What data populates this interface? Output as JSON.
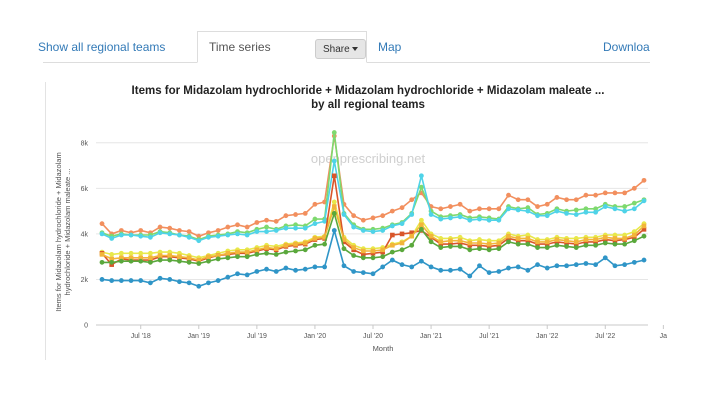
{
  "tabs": {
    "show_all": "Show all regional teams",
    "time_series": "Time series",
    "share": "Share",
    "map": "Map",
    "download": "Downloa"
  },
  "chart_data": {
    "type": "line",
    "title_line1": "Items for Midazolam hydrochloride + Midazolam hydrochloride + Midazolam maleate ...",
    "title_line2": "by all regional teams",
    "xlabel": "Month",
    "ylabel_line1": "Items for Midazolam hydrochloride + Midazolam",
    "ylabel_line2": "hydrochloride + Midazolam maleate ...",
    "watermark": "openprescribing.net",
    "ylim": [
      0,
      9000
    ],
    "yticks": [
      0,
      2000,
      4000,
      6000,
      8000
    ],
    "ytick_labels": [
      "0",
      "2k",
      "4k",
      "6k",
      "8k"
    ],
    "xticks": [
      "Jul '18",
      "Jan '19",
      "Jul '19",
      "Jan '20",
      "Jul '20",
      "Jan '21",
      "Jul '21",
      "Jan '22",
      "Jul '22",
      "Ja"
    ],
    "start_month": "2018-03",
    "grid": "horizontal",
    "colors": [
      "#f28f5e",
      "#7ed96e",
      "#4fd3e8",
      "#e8e84a",
      "#d9562a",
      "#f2b53a",
      "#5aa83c",
      "#2f95c7"
    ],
    "series": [
      {
        "values": [
          4450,
          4000,
          4150,
          4050,
          4150,
          4050,
          4300,
          4250,
          4150,
          4100,
          3900,
          4050,
          4150,
          4300,
          4400,
          4300,
          4500,
          4600,
          4550,
          4800,
          4850,
          4900,
          5300,
          5400,
          8300,
          5300,
          4800,
          4600,
          4700,
          4800,
          5000,
          5150,
          5500,
          5800,
          5200,
          5100,
          5200,
          5300,
          5000,
          5100,
          5100,
          5100,
          5700,
          5500,
          5500,
          5200,
          5300,
          5600,
          5500,
          5500,
          5700,
          5700,
          5800,
          5800,
          5800,
          6000,
          6350
        ]
      },
      {
        "values": [
          4050,
          3900,
          4000,
          3950,
          3950,
          3950,
          4100,
          4050,
          3950,
          3900,
          3750,
          3900,
          3950,
          4000,
          4100,
          4050,
          4200,
          4300,
          4200,
          4350,
          4400,
          4350,
          4650,
          4650,
          8450,
          4900,
          4400,
          4200,
          4200,
          4250,
          4400,
          4500,
          4900,
          6050,
          5000,
          4750,
          4800,
          4850,
          4700,
          4750,
          4700,
          4650,
          5200,
          5100,
          5150,
          4850,
          4900,
          5100,
          5000,
          5050,
          5100,
          5100,
          5300,
          5200,
          5200,
          5350,
          5500
        ]
      },
      {
        "values": [
          4000,
          3800,
          3950,
          3950,
          3900,
          3850,
          4050,
          4000,
          3950,
          3850,
          3700,
          3850,
          3900,
          3950,
          4000,
          3950,
          4100,
          4100,
          4150,
          4250,
          4250,
          4250,
          4450,
          4550,
          7200,
          4850,
          4300,
          4150,
          4100,
          4150,
          4350,
          4450,
          4850,
          6550,
          4850,
          4650,
          4700,
          4750,
          4600,
          4650,
          4600,
          4600,
          5100,
          5050,
          5000,
          4800,
          4800,
          5000,
          4900,
          4850,
          4950,
          4950,
          5200,
          5100,
          5000,
          5100,
          5450
        ]
      },
      {
        "values": [
          3200,
          3100,
          3150,
          3150,
          3150,
          3150,
          3200,
          3200,
          3150,
          3050,
          2950,
          3050,
          3150,
          3250,
          3300,
          3300,
          3400,
          3500,
          3450,
          3550,
          3600,
          3650,
          3850,
          3900,
          5400,
          3850,
          3500,
          3350,
          3350,
          3400,
          3550,
          3650,
          3900,
          4600,
          4000,
          3800,
          3800,
          3850,
          3700,
          3750,
          3700,
          3700,
          4000,
          3900,
          3950,
          3750,
          3750,
          3850,
          3800,
          3800,
          3850,
          3850,
          3950,
          3950,
          3950,
          4100,
          4450
        ]
      },
      {
        "values": [
          3150,
          2650,
          2900,
          2850,
          2850,
          2850,
          3000,
          3000,
          2950,
          2900,
          2800,
          2950,
          3050,
          3100,
          3150,
          3150,
          3250,
          3350,
          3300,
          3450,
          3500,
          3550,
          3750,
          3800,
          6550,
          3650,
          3300,
          3100,
          3150,
          3200,
          3950,
          4000,
          4050,
          4150,
          3850,
          3550,
          3550,
          3600,
          3500,
          3500,
          3450,
          3500,
          3800,
          3700,
          3700,
          3550,
          3550,
          3650,
          3600,
          3550,
          3650,
          3650,
          3750,
          3700,
          3750,
          3850,
          4200
        ]
      },
      {
        "values": [
          3100,
          2900,
          2950,
          2950,
          2950,
          2950,
          3050,
          3050,
          3000,
          2950,
          2850,
          3000,
          3050,
          3150,
          3200,
          3200,
          3300,
          3400,
          3350,
          3500,
          3550,
          3600,
          3800,
          3850,
          5200,
          3750,
          3400,
          3250,
          3250,
          3300,
          3500,
          3600,
          3900,
          4400,
          3900,
          3650,
          3700,
          3700,
          3600,
          3600,
          3550,
          3600,
          3900,
          3800,
          3800,
          3650,
          3650,
          3750,
          3700,
          3650,
          3750,
          3750,
          3850,
          3800,
          3800,
          3950,
          4350
        ]
      },
      {
        "values": [
          2750,
          2750,
          2800,
          2800,
          2800,
          2750,
          2850,
          2850,
          2800,
          2750,
          2700,
          2800,
          2900,
          2950,
          3000,
          3000,
          3100,
          3150,
          3100,
          3200,
          3250,
          3300,
          3500,
          3550,
          4900,
          3350,
          3050,
          2950,
          2950,
          3000,
          3200,
          3300,
          3500,
          4200,
          3650,
          3400,
          3450,
          3450,
          3300,
          3350,
          3300,
          3350,
          3650,
          3550,
          3550,
          3400,
          3400,
          3500,
          3450,
          3400,
          3500,
          3500,
          3600,
          3550,
          3550,
          3700,
          3900
        ]
      },
      {
        "values": [
          2000,
          1950,
          1950,
          1950,
          1950,
          1850,
          2050,
          2000,
          1900,
          1850,
          1700,
          1850,
          1950,
          2100,
          2250,
          2200,
          2350,
          2450,
          2350,
          2500,
          2400,
          2450,
          2550,
          2550,
          4150,
          2600,
          2350,
          2300,
          2250,
          2550,
          2850,
          2650,
          2550,
          2800,
          2550,
          2400,
          2400,
          2450,
          2150,
          2600,
          2300,
          2350,
          2500,
          2550,
          2400,
          2650,
          2500,
          2600,
          2600,
          2650,
          2700,
          2650,
          2950,
          2600,
          2650,
          2750,
          2850
        ]
      }
    ]
  }
}
